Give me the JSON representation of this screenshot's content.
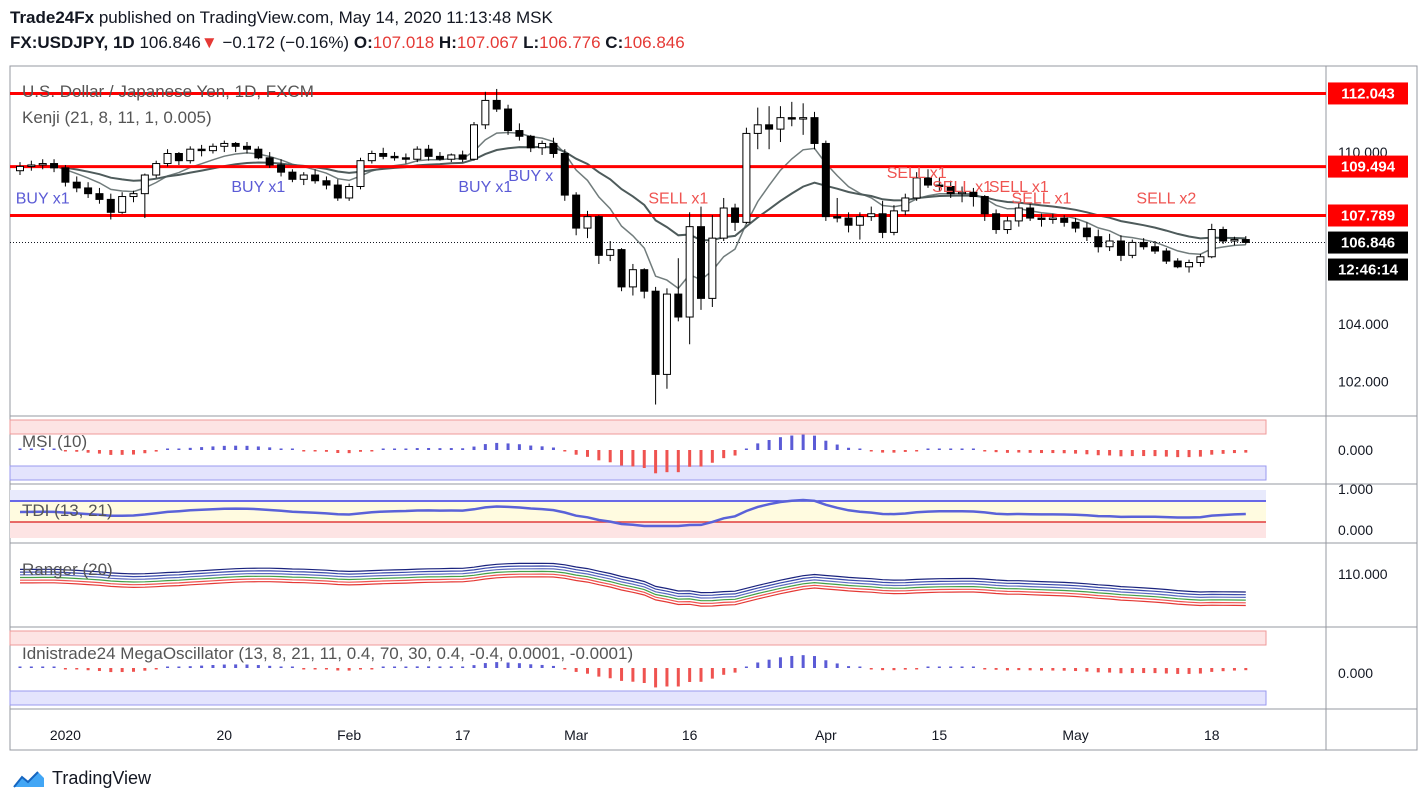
{
  "header": {
    "publisher": "Trade24Fx",
    "published_text": "published on TradingView.com, May 14, 2020 11:13:48 MSK",
    "symbol": "FX:USDJPY, 1D",
    "last": "106.846",
    "change": "−0.172 (−0.16%)",
    "o_label": "O:",
    "o": "107.018",
    "h_label": "H:",
    "h": "107.067",
    "l_label": "L:",
    "l": "106.776",
    "c_label": "C:",
    "c": "106.846"
  },
  "footer": {
    "brand": "TradingView"
  },
  "colors": {
    "up": "#ffffff",
    "down": "#000000",
    "level": "#ff0000",
    "buy": "#5b5bd6",
    "sell": "#ef5350",
    "axis": "#131722"
  },
  "chart_data": [
    {
      "type": "candlestick",
      "title": "U.S. Dollar / Japanese Yen, 1D, FXCM",
      "indicator": "Kenji (21, 8, 11, 1, 0.005)",
      "ylim": [
        100.8,
        113.0
      ],
      "yticks": [
        "110.000",
        "104.000",
        "102.000"
      ],
      "xticks": [
        "2020",
        "20",
        "Feb",
        "17",
        "Mar",
        "16",
        "Apr",
        "15",
        "May",
        "18"
      ],
      "xtick_index": [
        4,
        18,
        29,
        39,
        49,
        59,
        71,
        81,
        93,
        105
      ],
      "horizontal_levels": [
        112.043,
        109.494,
        107.789
      ],
      "price_labels": [
        "112.043",
        "109.494",
        "107.789",
        "106.846",
        "12:46:14"
      ],
      "last_price": 106.846,
      "signals": [
        {
          "text": "BUY x1",
          "index": 2,
          "price": 108.2
        },
        {
          "text": "BUY x1",
          "index": 21,
          "price": 108.6
        },
        {
          "text": "BUY x1",
          "index": 41,
          "price": 108.6
        },
        {
          "text": "BUY x",
          "index": 45,
          "price": 109.0
        },
        {
          "text": "SELL x1",
          "index": 58,
          "price": 108.2
        },
        {
          "text": "SELL x1",
          "index": 79,
          "price": 109.1
        },
        {
          "text": "SELL x1",
          "index": 83,
          "price": 108.6
        },
        {
          "text": "SELL x1",
          "index": 88,
          "price": 108.6
        },
        {
          "text": "SELL x1",
          "index": 90,
          "price": 108.2
        },
        {
          "text": "SELL x2",
          "index": 101,
          "price": 108.2
        }
      ],
      "candles": [
        [
          109.35,
          109.65,
          109.2,
          109.5
        ],
        [
          109.5,
          109.7,
          109.35,
          109.55
        ],
        [
          109.55,
          109.75,
          109.4,
          109.6
        ],
        [
          109.6,
          109.75,
          109.3,
          109.45
        ],
        [
          109.45,
          109.55,
          108.8,
          108.95
        ],
        [
          108.95,
          109.15,
          108.6,
          108.75
        ],
        [
          108.75,
          108.95,
          108.4,
          108.55
        ],
        [
          108.55,
          108.75,
          108.2,
          108.35
        ],
        [
          108.35,
          108.55,
          107.65,
          107.9
        ],
        [
          107.9,
          108.6,
          107.85,
          108.45
        ],
        [
          108.45,
          108.65,
          108.25,
          108.55
        ],
        [
          108.55,
          109.25,
          107.7,
          109.2
        ],
        [
          109.2,
          109.7,
          109.1,
          109.6
        ],
        [
          109.6,
          110.1,
          109.5,
          109.95
        ],
        [
          109.95,
          110.0,
          109.55,
          109.7
        ],
        [
          109.7,
          110.2,
          109.6,
          110.1
        ],
        [
          110.1,
          110.25,
          109.85,
          110.05
        ],
        [
          110.05,
          110.3,
          109.95,
          110.2
        ],
        [
          110.2,
          110.4,
          110.0,
          110.3
        ],
        [
          110.3,
          110.35,
          110.0,
          110.2
        ],
        [
          110.2,
          110.35,
          109.95,
          110.1
        ],
        [
          110.1,
          110.2,
          109.75,
          109.8
        ],
        [
          109.8,
          110.0,
          109.45,
          109.55
        ],
        [
          109.55,
          109.75,
          109.15,
          109.3
        ],
        [
          109.3,
          109.4,
          108.95,
          109.05
        ],
        [
          109.05,
          109.3,
          108.85,
          109.2
        ],
        [
          109.2,
          109.4,
          108.9,
          109.0
        ],
        [
          109.0,
          109.15,
          108.7,
          108.85
        ],
        [
          108.85,
          109.05,
          108.3,
          108.4
        ],
        [
          108.4,
          108.9,
          108.3,
          108.8
        ],
        [
          108.8,
          109.8,
          108.7,
          109.7
        ],
        [
          109.7,
          110.05,
          109.6,
          109.95
        ],
        [
          109.95,
          110.15,
          109.75,
          109.85
        ],
        [
          109.85,
          110.0,
          109.7,
          109.8
        ],
        [
          109.8,
          109.95,
          109.6,
          109.75
        ],
        [
          109.75,
          110.2,
          109.65,
          110.1
        ],
        [
          110.1,
          110.25,
          109.7,
          109.85
        ],
        [
          109.85,
          110.0,
          109.7,
          109.75
        ],
        [
          109.75,
          109.95,
          109.65,
          109.9
        ],
        [
          109.9,
          110.05,
          109.65,
          109.75
        ],
        [
          109.75,
          111.05,
          109.7,
          110.95
        ],
        [
          110.95,
          112.1,
          110.8,
          111.8
        ],
        [
          111.8,
          112.2,
          111.4,
          111.5
        ],
        [
          111.5,
          111.65,
          110.6,
          110.75
        ],
        [
          110.75,
          111.0,
          110.4,
          110.55
        ],
        [
          110.55,
          110.6,
          110.0,
          110.15
        ],
        [
          110.15,
          110.4,
          109.9,
          110.3
        ],
        [
          110.3,
          110.5,
          109.8,
          109.95
        ],
        [
          109.95,
          110.1,
          108.3,
          108.5
        ],
        [
          108.5,
          108.6,
          107.1,
          107.35
        ],
        [
          107.35,
          107.95,
          107.0,
          107.75
        ],
        [
          107.75,
          107.8,
          106.1,
          106.4
        ],
        [
          106.4,
          106.9,
          106.2,
          106.6
        ],
        [
          106.6,
          106.65,
          105.15,
          105.3
        ],
        [
          105.3,
          106.1,
          105.0,
          105.9
        ],
        [
          105.9,
          105.95,
          104.9,
          105.15
        ],
        [
          105.15,
          105.3,
          101.2,
          102.25
        ],
        [
          102.25,
          105.25,
          101.75,
          105.05
        ],
        [
          105.05,
          106.3,
          104.1,
          104.25
        ],
        [
          104.25,
          107.9,
          103.3,
          107.4
        ],
        [
          107.4,
          108.1,
          104.5,
          104.9
        ],
        [
          104.9,
          107.8,
          104.6,
          107.0
        ],
        [
          107.0,
          108.4,
          106.9,
          108.05
        ],
        [
          108.05,
          108.2,
          107.25,
          107.55
        ],
        [
          107.55,
          110.85,
          107.5,
          110.65
        ],
        [
          110.65,
          111.55,
          110.1,
          110.95
        ],
        [
          110.95,
          111.6,
          110.1,
          110.8
        ],
        [
          110.8,
          111.6,
          110.35,
          111.2
        ],
        [
          111.2,
          111.75,
          110.9,
          111.15
        ],
        [
          111.15,
          111.7,
          110.6,
          111.2
        ],
        [
          111.2,
          111.4,
          110.1,
          110.3
        ],
        [
          110.3,
          110.4,
          107.6,
          107.75
        ],
        [
          107.75,
          108.4,
          107.55,
          107.7
        ],
        [
          107.7,
          107.9,
          107.2,
          107.45
        ],
        [
          107.45,
          107.9,
          106.95,
          107.75
        ],
        [
          107.75,
          108.1,
          107.6,
          107.85
        ],
        [
          107.85,
          108.3,
          107.0,
          107.2
        ],
        [
          107.2,
          108.15,
          107.1,
          107.95
        ],
        [
          107.95,
          108.55,
          107.8,
          108.4
        ],
        [
          108.4,
          109.3,
          108.3,
          109.1
        ],
        [
          109.1,
          109.4,
          108.75,
          108.85
        ],
        [
          108.85,
          109.1,
          108.65,
          108.8
        ],
        [
          108.8,
          109.0,
          108.4,
          108.55
        ],
        [
          108.55,
          108.8,
          108.25,
          108.6
        ],
        [
          108.6,
          108.75,
          108.1,
          108.45
        ],
        [
          108.45,
          108.5,
          107.6,
          107.85
        ],
        [
          107.85,
          108.0,
          107.15,
          107.3
        ],
        [
          107.3,
          107.75,
          107.15,
          107.6
        ],
        [
          107.6,
          108.25,
          107.4,
          108.05
        ],
        [
          108.05,
          108.2,
          107.6,
          107.7
        ],
        [
          107.7,
          107.85,
          107.4,
          107.65
        ],
        [
          107.65,
          107.85,
          107.5,
          107.7
        ],
        [
          107.7,
          107.8,
          107.4,
          107.55
        ],
        [
          107.55,
          107.7,
          107.2,
          107.35
        ],
        [
          107.35,
          107.55,
          106.9,
          107.05
        ],
        [
          107.05,
          107.3,
          106.5,
          106.7
        ],
        [
          106.7,
          107.15,
          106.55,
          106.9
        ],
        [
          106.9,
          107.1,
          106.2,
          106.4
        ],
        [
          106.4,
          106.95,
          106.3,
          106.85
        ],
        [
          106.85,
          107.0,
          106.6,
          106.7
        ],
        [
          106.7,
          106.9,
          106.45,
          106.55
        ],
        [
          106.55,
          106.65,
          106.1,
          106.2
        ],
        [
          106.2,
          106.3,
          105.95,
          106.0
        ],
        [
          106.0,
          106.25,
          105.8,
          106.15
        ],
        [
          106.15,
          106.45,
          106.0,
          106.35
        ],
        [
          106.35,
          107.5,
          106.3,
          107.3
        ],
        [
          107.3,
          107.4,
          106.8,
          106.9
        ],
        [
          106.9,
          107.05,
          106.75,
          106.95
        ],
        [
          106.95,
          107.07,
          106.78,
          106.85
        ]
      ]
    },
    {
      "type": "bar",
      "title": "MSI (10)",
      "yticks": [
        "0.000"
      ],
      "note": "histogram oscillator, positive blue, negative red"
    },
    {
      "type": "line",
      "title": "TDI (13, 21)",
      "yticks": [
        "1.000",
        "0.000"
      ]
    },
    {
      "type": "line",
      "title": "Ranger (20)",
      "yticks": [
        "110.000"
      ]
    },
    {
      "type": "bar",
      "title": "Idnistrade24 MegaOscillator (13, 8, 21, 11, 0.4, 70, 30, 0.4, -0.4, 0.0001, -0.0001)",
      "yticks": [
        "0.000"
      ]
    }
  ]
}
